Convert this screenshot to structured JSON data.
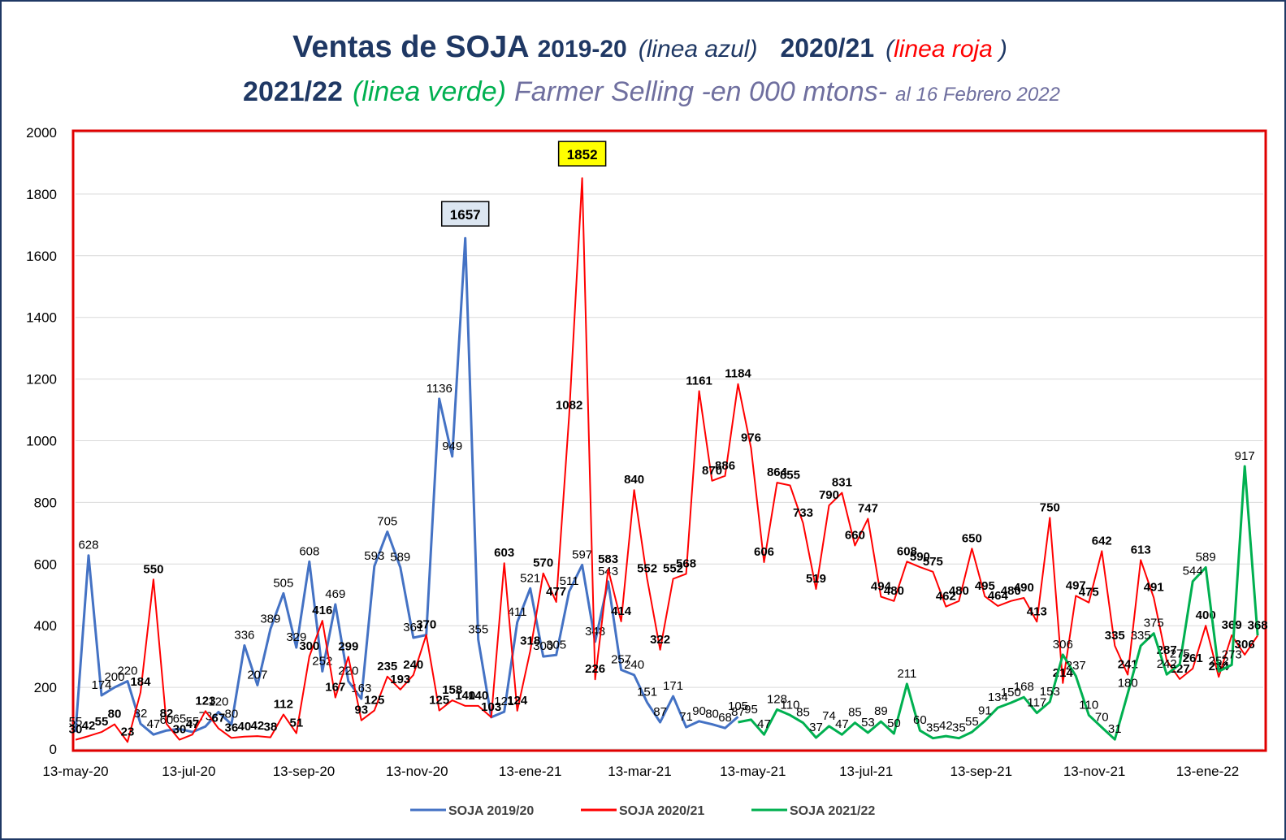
{
  "chart_data": {
    "type": "line",
    "title": [
      "Ventas de SOJA",
      "2019-20",
      "(linea azul)",
      "2020/21",
      "(",
      "linea roja",
      ")"
    ],
    "subtitle": [
      "2021/22",
      "(linea verde)",
      "Farmer Selling -en 000 mtons-",
      "al 16 Febrero  2022"
    ],
    "x": [
      "2020-05-13",
      "2020-05-20",
      "2020-05-27",
      "2020-06-03",
      "2020-06-10",
      "2020-06-17",
      "2020-06-24",
      "2020-07-01",
      "2020-07-08",
      "2020-07-15",
      "2020-07-22",
      "2020-07-29",
      "2020-08-05",
      "2020-08-12",
      "2020-08-19",
      "2020-08-26",
      "2020-09-02",
      "2020-09-09",
      "2020-09-16",
      "2020-09-23",
      "2020-09-30",
      "2020-10-07",
      "2020-10-14",
      "2020-10-21",
      "2020-10-28",
      "2020-11-04",
      "2020-11-11",
      "2020-11-18",
      "2020-11-25",
      "2020-12-02",
      "2020-12-09",
      "2020-12-16",
      "2020-12-23",
      "2020-12-30",
      "2021-01-06",
      "2021-01-13",
      "2021-01-20",
      "2021-01-27",
      "2021-02-03",
      "2021-02-10",
      "2021-02-17",
      "2021-02-24",
      "2021-03-03",
      "2021-03-10",
      "2021-03-17",
      "2021-03-24",
      "2021-03-31",
      "2021-04-07",
      "2021-04-14",
      "2021-04-21",
      "2021-04-28",
      "2021-05-05",
      "2021-05-12",
      "2021-05-19",
      "2021-05-26",
      "2021-06-02",
      "2021-06-09",
      "2021-06-16",
      "2021-06-23",
      "2021-06-30",
      "2021-07-07",
      "2021-07-14",
      "2021-07-21",
      "2021-07-28",
      "2021-08-04",
      "2021-08-11",
      "2021-08-18",
      "2021-08-25",
      "2021-09-01",
      "2021-09-08",
      "2021-09-15",
      "2021-09-22",
      "2021-09-29",
      "2021-10-06",
      "2021-10-13",
      "2021-10-20",
      "2021-10-27",
      "2021-11-03",
      "2021-11-10",
      "2021-11-17",
      "2021-11-24",
      "2021-12-01",
      "2021-12-08",
      "2021-12-15",
      "2021-12-22",
      "2021-12-29",
      "2022-01-05",
      "2022-01-12",
      "2022-01-19",
      "2022-01-26",
      "2022-02-02",
      "2022-02-09"
    ],
    "series": [
      {
        "name": "SOJA 2019/20",
        "color": "#4472c4",
        "highlight_color": "#dce6f1",
        "values": [
          55,
          628,
          174,
          200,
          220,
          82,
          47,
          60,
          65,
          55,
          73,
          120,
          80,
          336,
          207,
          389,
          505,
          329,
          608,
          252,
          469,
          220,
          163,
          593,
          705,
          589,
          361,
          370,
          1136,
          949,
          1657,
          355,
          103,
          121,
          411,
          521,
          300,
          305,
          511,
          597,
          348,
          543,
          257,
          240,
          151,
          87,
          171,
          71,
          90,
          80,
          68,
          105,
          null,
          null,
          null,
          null,
          null,
          null,
          null,
          null,
          null,
          null,
          null,
          null,
          null,
          null,
          null,
          null,
          null,
          null,
          null,
          null,
          null,
          null,
          null,
          null,
          null,
          null,
          null,
          null,
          null,
          null,
          null,
          null,
          null,
          null,
          null,
          null,
          null,
          null,
          null,
          null
        ]
      },
      {
        "name": "SOJA 2020/21",
        "color": "#ff0000",
        "highlight_color": "#ffff00",
        "values": [
          30,
          42,
          55,
          80,
          23,
          184,
          550,
          82,
          30,
          47,
          123,
          67,
          36,
          40,
          42,
          38,
          112,
          51,
          300,
          416,
          167,
          299,
          93,
          125,
          235,
          193,
          240,
          370,
          125,
          158,
          140,
          140,
          103,
          603,
          124,
          318,
          570,
          477,
          1082,
          1852,
          226,
          583,
          414,
          840,
          552,
          322,
          552,
          568,
          1161,
          870,
          886,
          1184,
          976,
          606,
          864,
          855,
          733,
          519,
          790,
          831,
          660,
          747,
          494,
          480,
          608,
          590,
          575,
          462,
          480,
          650,
          495,
          464,
          480,
          490,
          413,
          750,
          214,
          497,
          475,
          642,
          335,
          241,
          613,
          491,
          287,
          227,
          261,
          400,
          234,
          369,
          306,
          368
        ]
      },
      {
        "name": "SOJA 2021/22",
        "color": "#00b050",
        "values": [
          null,
          null,
          null,
          null,
          null,
          null,
          null,
          null,
          null,
          null,
          null,
          null,
          null,
          null,
          null,
          null,
          null,
          null,
          null,
          null,
          null,
          null,
          null,
          null,
          null,
          null,
          null,
          null,
          null,
          null,
          null,
          null,
          null,
          null,
          null,
          null,
          null,
          null,
          null,
          null,
          null,
          null,
          null,
          null,
          null,
          null,
          null,
          null,
          null,
          null,
          null,
          87,
          95,
          47,
          128,
          110,
          85,
          37,
          74,
          47,
          85,
          53,
          89,
          50,
          211,
          60,
          35,
          42,
          35,
          55,
          91,
          134,
          150,
          168,
          117,
          153,
          306,
          237,
          110,
          70,
          31,
          180,
          335,
          375,
          242,
          275,
          544,
          589,
          252,
          273,
          917,
          368
        ]
      }
    ],
    "xlim": [
      "2020-05-13",
      "2022-02-12"
    ],
    "xticks": [
      {
        "value": "2020-05-13",
        "label": "13-may-20"
      },
      {
        "value": "2020-07-13",
        "label": "13-jul-20"
      },
      {
        "value": "2020-09-13",
        "label": "13-sep-20"
      },
      {
        "value": "2020-11-13",
        "label": "13-nov-20"
      },
      {
        "value": "2021-01-13",
        "label": "13-ene-21"
      },
      {
        "value": "2021-03-13",
        "label": "13-mar-21"
      },
      {
        "value": "2021-05-13",
        "label": "13-may-21"
      },
      {
        "value": "2021-07-13",
        "label": "13-jul-21"
      },
      {
        "value": "2021-09-13",
        "label": "13-sep-21"
      },
      {
        "value": "2021-11-13",
        "label": "13-nov-21"
      },
      {
        "value": "2022-01-13",
        "label": "13-ene-22"
      }
    ],
    "ylim": [
      0,
      2000
    ],
    "yticks": [
      0,
      200,
      400,
      600,
      800,
      1000,
      1200,
      1400,
      1600,
      1800,
      2000
    ],
    "grid": true,
    "legend": "bottom"
  }
}
